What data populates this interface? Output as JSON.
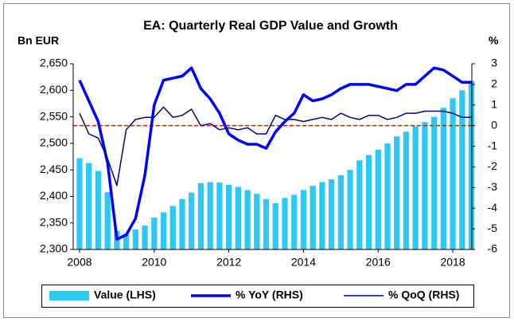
{
  "chart_data": {
    "type": "bar_line",
    "title": "EA: Quarterly Real GDP Value and Growth",
    "y_label": "Bn EUR",
    "y2_label": "%",
    "x": [
      2008,
      2008.25,
      2008.5,
      2008.75,
      2009,
      2009.25,
      2009.5,
      2009.75,
      2010,
      2010.25,
      2010.5,
      2010.75,
      2011,
      2011.25,
      2011.5,
      2011.75,
      2012,
      2012.25,
      2012.5,
      2012.75,
      2013,
      2013.25,
      2013.5,
      2013.75,
      2014,
      2014.25,
      2014.5,
      2014.75,
      2015,
      2015.25,
      2015.5,
      2015.75,
      2016,
      2016.25,
      2016.5,
      2016.75,
      2017,
      2017.25,
      2017.5,
      2017.75,
      2018,
      2018.25,
      2018.5
    ],
    "series": [
      {
        "name": "Value (LHS)",
        "kind": "bar",
        "axis": "y",
        "color": "#2ec8f4",
        "values": [
          2472,
          2463,
          2448,
          2408,
          2335,
          2330,
          2338,
          2345,
          2360,
          2370,
          2382,
          2395,
          2407,
          2425,
          2427,
          2426,
          2422,
          2418,
          2412,
          2405,
          2395,
          2387,
          2397,
          2403,
          2412,
          2420,
          2427,
          2432,
          2440,
          2450,
          2468,
          2478,
          2488,
          2500,
          2513,
          2522,
          2532,
          2540,
          2550,
          2567,
          2585,
          2600,
          2618
        ]
      },
      {
        "name": "% YoY (RHS)",
        "kind": "line",
        "axis": "y2",
        "color": "#0000ff",
        "values": [
          2.2,
          1.2,
          0.2,
          -1.8,
          -5.5,
          -5.3,
          -4.5,
          -2.4,
          1.0,
          2.2,
          2.3,
          2.4,
          2.8,
          1.8,
          1.3,
          0.6,
          -0.4,
          -0.7,
          -0.9,
          -0.9,
          -1.1,
          -0.3,
          0.2,
          0.6,
          1.5,
          1.2,
          1.3,
          1.5,
          1.8,
          2.0,
          2.0,
          2.0,
          1.9,
          1.8,
          1.7,
          2.0,
          2.0,
          2.4,
          2.8,
          2.7,
          2.4,
          2.1,
          2.1
        ]
      },
      {
        "name": "% QoQ (RHS)",
        "kind": "line",
        "axis": "y2",
        "color": "#000080",
        "values": [
          0.6,
          -0.4,
          -0.6,
          -1.6,
          -2.9,
          -0.2,
          0.3,
          0.4,
          0.4,
          0.9,
          0.4,
          0.5,
          0.8,
          0.0,
          0.1,
          -0.2,
          -0.1,
          -0.2,
          -0.1,
          -0.4,
          -0.4,
          0.5,
          0.3,
          0.3,
          0.2,
          0.3,
          0.4,
          0.3,
          0.6,
          0.4,
          0.3,
          0.5,
          0.5,
          0.3,
          0.4,
          0.6,
          0.6,
          0.7,
          0.7,
          0.7,
          0.6,
          0.4,
          0.4
        ]
      }
    ],
    "xlim": [
      2007.83,
      2018.51
    ],
    "xticks": [
      2008,
      2010,
      2012,
      2014,
      2016,
      2018
    ],
    "ylim": [
      2300,
      2650
    ],
    "yticks": [
      {
        "value": 2300,
        "label": "2,300"
      },
      {
        "value": 2350,
        "label": "2,350"
      },
      {
        "value": 2400,
        "label": "2,400"
      },
      {
        "value": 2450,
        "label": "2,450"
      },
      {
        "value": 2500,
        "label": "2,500"
      },
      {
        "value": 2550,
        "label": "2,550"
      },
      {
        "value": 2600,
        "label": "2,600"
      },
      {
        "value": 2650,
        "label": "2,650"
      }
    ],
    "y2lim": [
      -6,
      3
    ],
    "y2ticks": [
      -6,
      -5,
      -4,
      -3,
      -2,
      -1,
      0,
      1,
      2,
      3
    ],
    "reference_line": {
      "axis": "y2",
      "value": 0,
      "color": "#ff0000"
    },
    "legend": "bottom"
  }
}
